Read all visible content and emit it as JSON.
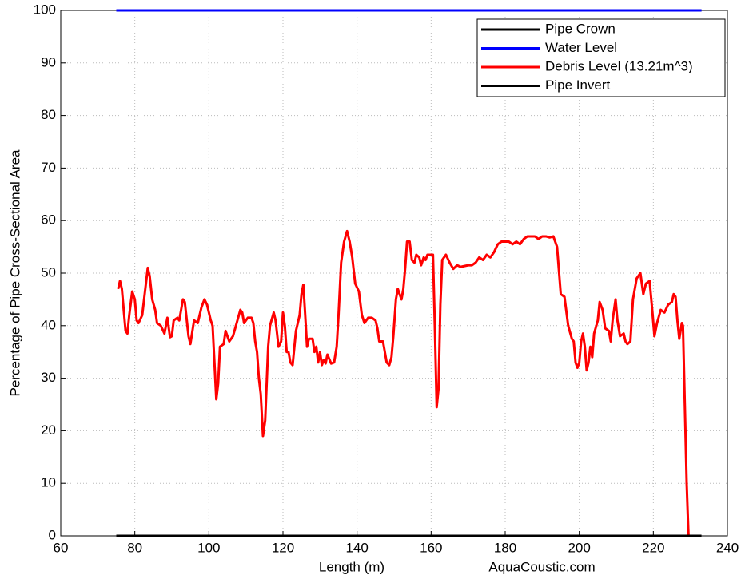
{
  "chart_data": {
    "type": "line",
    "xlabel": "Length (m)",
    "ylabel": "Percentage of Pipe Cross-Sectional Area",
    "annotation": "AquaCoustic.com",
    "xlim": [
      60,
      240
    ],
    "xticks": [
      60,
      80,
      100,
      120,
      140,
      160,
      180,
      200,
      220,
      240
    ],
    "ylim": [
      0,
      100
    ],
    "yticks": [
      0,
      10,
      20,
      30,
      40,
      50,
      60,
      70,
      80,
      90,
      100
    ],
    "grid": true,
    "legend": "upper right",
    "series": [
      {
        "name": "Pipe Crown",
        "color": "#000000",
        "x": [
          75,
          233
        ],
        "values": [
          100,
          100
        ]
      },
      {
        "name": "Water Level",
        "color": "#0000ff",
        "x": [
          75,
          233
        ],
        "values": [
          100,
          100
        ]
      },
      {
        "name": "Debris Level (13.21m^3)",
        "color": "#ff0000",
        "x": [
          75.5,
          76,
          76.5,
          77.5,
          78,
          78.5,
          79.3,
          80,
          80.5,
          81,
          82,
          83,
          83.5,
          84,
          84.7,
          85.5,
          86,
          87,
          88,
          88.8,
          89.5,
          90,
          90.5,
          91.5,
          92,
          93,
          93.5,
          94.5,
          95,
          96,
          97,
          98,
          98.8,
          99.5,
          100.5,
          101,
          101.5,
          102,
          102.5,
          103,
          104,
          104.5,
          105.5,
          106.5,
          107.5,
          108.5,
          109,
          109.5,
          110.5,
          111.5,
          112,
          112.5,
          113,
          113.5,
          114,
          114.6,
          115.2,
          116,
          116.5,
          117.5,
          118,
          118.8,
          119.5,
          120,
          120.5,
          121,
          121.5,
          122,
          122.6,
          123.5,
          124.5,
          125,
          125.5,
          126,
          126.5,
          127,
          128,
          128.5,
          129,
          129.5,
          130,
          130.5,
          131,
          131.5,
          132,
          133,
          133.8,
          134.5,
          135,
          135.7,
          136.5,
          137.3,
          138,
          138.7,
          139.5,
          140.5,
          141.3,
          142,
          143,
          144,
          145,
          145.5,
          146,
          147,
          148,
          148.7,
          149.3,
          149.8,
          150.5,
          151,
          151.5,
          152,
          152.5,
          153,
          153.5,
          154.2,
          154.8,
          155.5,
          156,
          156.8,
          157.3,
          158,
          158.5,
          159,
          160.5,
          161,
          161.5,
          162,
          162.5,
          163,
          164,
          165,
          166,
          167,
          168,
          170,
          171,
          172,
          173,
          174,
          175,
          176,
          177,
          178,
          179,
          181,
          182,
          183,
          184,
          185,
          186,
          188,
          189,
          190,
          191,
          192,
          193,
          194,
          195,
          196,
          197,
          198,
          198.5,
          199,
          199.5,
          200,
          200.5,
          201,
          201.5,
          202,
          202.5,
          203,
          203.5,
          204,
          205,
          205.5,
          206.3,
          207,
          208,
          208.5,
          209,
          209.8,
          210.3,
          211,
          212,
          212.5,
          213,
          213.8,
          214.5,
          215.5,
          216.5,
          217.3,
          218,
          219,
          219.7,
          220.3,
          221,
          222,
          223,
          224,
          225,
          225.5,
          226,
          226.5,
          227,
          227.7,
          228,
          228.5,
          229,
          229.5
        ],
        "values": [
          47,
          48.5,
          47,
          39,
          38.5,
          42,
          46.5,
          45,
          41,
          40.5,
          42,
          48,
          51,
          49.5,
          45,
          43,
          40.5,
          40,
          38.5,
          41.5,
          37.8,
          38,
          41,
          41.5,
          41,
          45,
          44.5,
          38,
          36.5,
          41,
          40.5,
          43.5,
          45,
          44,
          41,
          40,
          33,
          26,
          29,
          36,
          36.5,
          39,
          37,
          38,
          40.5,
          43,
          42.5,
          40.5,
          41.5,
          41.5,
          40.5,
          37,
          35,
          30,
          27,
          19,
          22,
          36,
          40,
          42.5,
          41,
          36,
          37,
          42.5,
          40,
          35,
          35,
          33,
          32.5,
          39,
          42,
          46,
          47.8,
          42,
          36,
          37.5,
          37.5,
          35,
          36,
          33,
          35,
          32.5,
          33.5,
          32.8,
          34.5,
          32.8,
          33,
          36,
          42,
          52,
          56,
          58,
          56,
          53,
          48,
          46.5,
          42,
          40.5,
          41.5,
          41.5,
          41,
          39.5,
          37,
          37,
          33,
          32.5,
          34,
          38,
          45,
          47,
          46,
          45,
          47,
          51,
          56,
          56,
          52.5,
          52,
          53.5,
          53,
          51.5,
          53,
          52.5,
          53.5,
          53.5,
          40,
          24.5,
          28,
          44,
          52.5,
          53.5,
          52,
          50.8,
          51.5,
          51.2,
          51.5,
          51.5,
          52,
          53,
          52.5,
          53.5,
          53,
          54,
          55.5,
          56,
          56,
          55.5,
          56,
          55.5,
          56.5,
          57,
          57,
          56.5,
          57,
          57,
          56.8,
          57,
          55,
          46,
          45.5,
          40,
          37.5,
          37,
          33,
          32,
          33,
          37,
          38.5,
          36,
          31.5,
          33,
          36,
          34,
          38.5,
          41,
          44.5,
          43,
          39.5,
          39,
          37,
          41,
          45,
          41,
          38,
          38.5,
          37,
          36.5,
          37,
          45,
          49,
          50,
          46,
          48,
          48.5,
          43,
          38,
          40.5,
          43,
          42.5,
          44,
          44.5,
          46,
          45.5,
          41,
          37.5,
          40.5,
          40,
          25,
          10,
          0
        ]
      },
      {
        "name": "Pipe Invert",
        "color": "#000000",
        "x": [
          75,
          233
        ],
        "values": [
          0,
          0
        ]
      }
    ]
  }
}
